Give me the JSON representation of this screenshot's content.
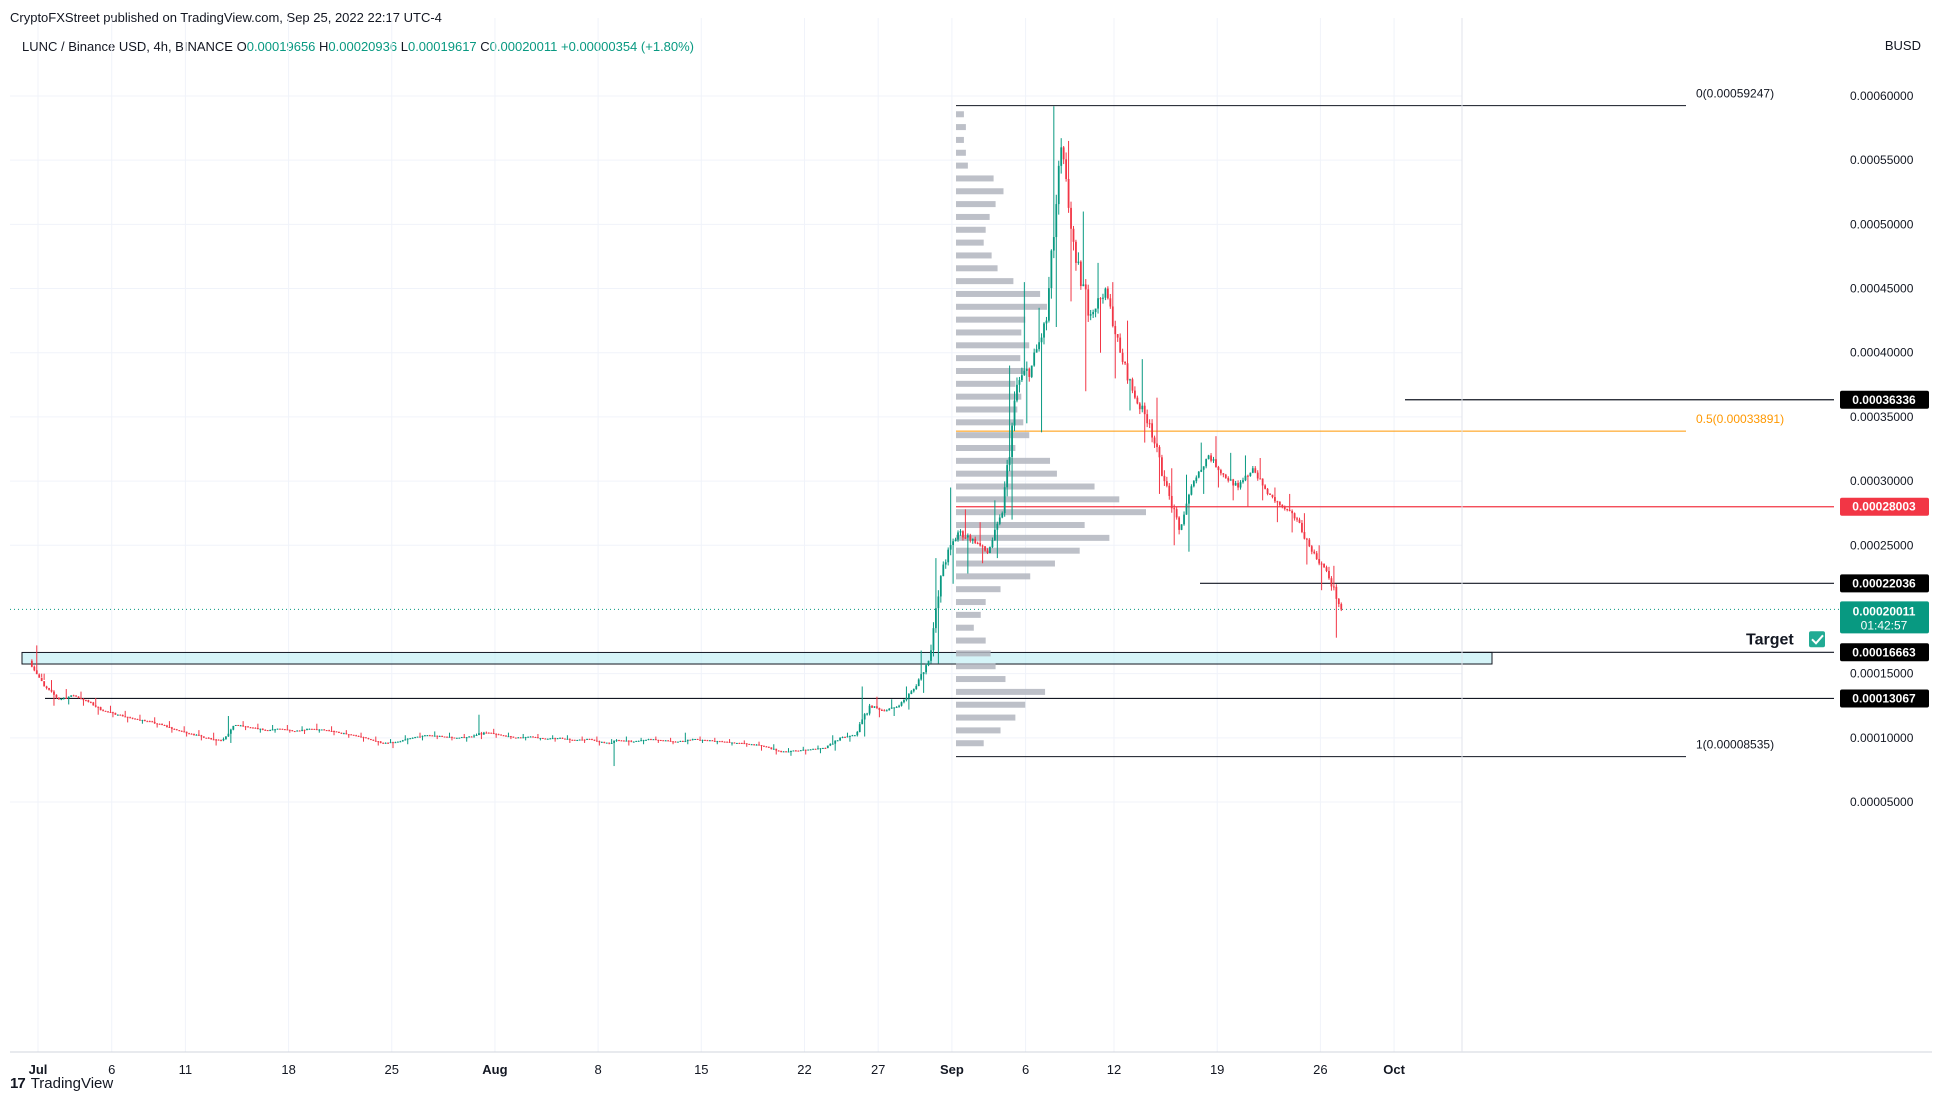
{
  "header": {
    "attribution": "CryptoFXStreet published on TradingView.com, Sep 25, 2022 22:17 UTC-4",
    "symbol": "LUNC / Binance USD, 4h, BINANCE",
    "ohlc": {
      "o_label": "O",
      "o_value": "0.00019656",
      "h_label": "H",
      "h_value": "0.00020936",
      "l_label": "L",
      "l_value": "0.00019617",
      "c_label": "C",
      "c_value": "0.00020011",
      "change": "+0.00000354 (+1.80%)"
    },
    "currency": "BUSD"
  },
  "footer": {
    "logo_text": "TradingView",
    "logo_mark": "17"
  },
  "chart_data": {
    "type": "candlestick",
    "title": "LUNC / Binance USD, 4h, BINANCE",
    "ylim": [
      3e-05,
      0.000625
    ],
    "y_ticks": [
      {
        "value": 5e-05,
        "label": "0.00005000"
      },
      {
        "value": 0.0001,
        "label": "0.00010000"
      },
      {
        "value": 0.00015,
        "label": "0.00015000"
      },
      {
        "value": 0.00025,
        "label": "0.00025000"
      },
      {
        "value": 0.0003,
        "label": "0.00030000"
      },
      {
        "value": 0.00035,
        "label": "0.00035000"
      },
      {
        "value": 0.0004,
        "label": "0.00040000"
      },
      {
        "value": 0.00045,
        "label": "0.00045000"
      },
      {
        "value": 0.0005,
        "label": "0.00050000"
      },
      {
        "value": 0.00055,
        "label": "0.00055000"
      },
      {
        "value": 0.0006,
        "label": "0.00060000"
      }
    ],
    "x_ticks": [
      {
        "day": 0,
        "label": "Jul"
      },
      {
        "day": 5,
        "label": "6"
      },
      {
        "day": 10,
        "label": "11"
      },
      {
        "day": 17,
        "label": "18"
      },
      {
        "day": 24,
        "label": "25"
      },
      {
        "day": 31,
        "label": "Aug"
      },
      {
        "day": 38,
        "label": "8"
      },
      {
        "day": 45,
        "label": "15"
      },
      {
        "day": 52,
        "label": "22"
      },
      {
        "day": 57,
        "label": "27"
      },
      {
        "day": 62,
        "label": "Sep"
      },
      {
        "day": 67,
        "label": "6"
      },
      {
        "day": 73,
        "label": "12"
      },
      {
        "day": 80,
        "label": "19"
      },
      {
        "day": 87,
        "label": "26"
      },
      {
        "day": 92,
        "label": "Oct"
      }
    ],
    "fib_levels": [
      {
        "ratio": "0",
        "value": 0.00059247,
        "label": "0(0.00059247)",
        "color": "#131722"
      },
      {
        "ratio": "0.5",
        "value": 0.00033891,
        "label": "0.5(0.00033891)",
        "color": "#ff9800"
      },
      {
        "ratio": "1",
        "value": 8.535e-05,
        "label": "1(0.00008535)",
        "color": "#131722"
      }
    ],
    "levels": [
      {
        "value": 0.00036336,
        "label": "0.00036336",
        "color": "#131722",
        "badge_bg": "#000000"
      },
      {
        "value": 0.00028003,
        "label": "0.00028003",
        "color": "#f23645",
        "badge_bg": "#f23645"
      },
      {
        "value": 0.00022036,
        "label": "0.00022036",
        "color": "#131722",
        "badge_bg": "#000000"
      },
      {
        "value": 0.00016663,
        "label": "0.00016663",
        "color": "#131722",
        "badge_bg": "#000000"
      },
      {
        "value": 0.00013067,
        "label": "0.00013067",
        "color": "#131722",
        "badge_bg": "#000000"
      }
    ],
    "current_price": {
      "value": 0.00020011,
      "label": "0.00020011",
      "countdown": "01:42:57",
      "color": "#089981"
    },
    "target": {
      "label": "Target",
      "value": 0.00016663,
      "check_icon": "check-box-icon"
    },
    "zone": {
      "top": 0.0001665,
      "bottom": 0.0001575,
      "color": "#b2ebf2"
    },
    "colors": {
      "up": "#089981",
      "down": "#f23645",
      "volume_profile": "#b2b5be"
    },
    "candles_daily": [
      [
        0.00016,
        0.000172,
        0.00015,
        0.00014
      ],
      [
        0.00014,
        0.000145,
        0.000125,
        0.00013
      ],
      [
        0.00013,
        0.000138,
        0.000126,
        0.000133
      ],
      [
        0.000133,
        0.000136,
        0.000125,
        0.000128
      ],
      [
        0.000128,
        0.000131,
        0.000118,
        0.000121
      ],
      [
        0.000121,
        0.000125,
        0.000116,
        0.000118
      ],
      [
        0.000118,
        0.000121,
        0.000112,
        0.000115
      ],
      [
        0.000115,
        0.000118,
        0.000111,
        0.000113
      ],
      [
        0.000113,
        0.000116,
        0.000108,
        0.00011
      ],
      [
        0.00011,
        0.000113,
        0.000104,
        0.000106
      ],
      [
        0.000106,
        0.000109,
        0.000101,
        0.000103
      ],
      [
        0.000103,
        0.000106,
        9.8e-05,
        0.0001
      ],
      [
        0.0001,
        0.000104,
        9.4e-05,
        9.8e-05
      ],
      [
        9.8e-05,
        0.000117,
        9.6e-05,
        0.00011
      ],
      [
        0.00011,
        0.000113,
        0.000106,
        0.000108
      ],
      [
        0.000108,
        0.000111,
        0.000104,
        0.000106
      ],
      [
        0.000106,
        0.00011,
        0.000104,
        0.000107
      ],
      [
        0.000107,
        0.00011,
        0.000104,
        0.000105
      ],
      [
        0.000105,
        0.000109,
        0.000103,
        0.000107
      ],
      [
        0.000107,
        0.000111,
        0.000104,
        0.000106
      ],
      [
        0.000106,
        0.000109,
        0.000102,
        0.000104
      ],
      [
        0.000104,
        0.000106,
        0.0001,
        0.000102
      ],
      [
        0.000102,
        0.000104,
        9.7e-05,
        9.9e-05
      ],
      [
        9.9e-05,
        0.000101,
        9.4e-05,
        9.6e-05
      ],
      [
        9.6e-05,
        9.9e-05,
        9.2e-05,
        9.7e-05
      ],
      [
        9.7e-05,
        0.000102,
        9.5e-05,
        0.0001
      ],
      [
        0.0001,
        0.000104,
        9.8e-05,
        0.000102
      ],
      [
        0.000102,
        0.000105,
        9.9e-05,
        0.000101
      ],
      [
        0.000101,
        0.000104,
        9.8e-05,
        0.0001
      ],
      [
        0.0001,
        0.000103,
        9.7e-05,
        0.000101
      ],
      [
        0.000101,
        0.000118,
        9.9e-05,
        0.000104
      ],
      [
        0.000104,
        0.000107,
        0.0001,
        0.000102
      ],
      [
        0.000102,
        0.000104,
        9.9e-05,
        0.0001
      ],
      [
        0.0001,
        0.000103,
        9.8e-05,
        0.000101
      ],
      [
        0.000101,
        0.000103,
        9.8e-05,
        9.9e-05
      ],
      [
        9.9e-05,
        0.000102,
        9.7e-05,
        0.0001
      ],
      [
        0.0001,
        0.000102,
        9.6e-05,
        9.8e-05
      ],
      [
        9.8e-05,
        0.000101,
        9.6e-05,
        9.9e-05
      ],
      [
        9.9e-05,
        0.000101,
        9.4e-05,
        9.6e-05
      ],
      [
        9.6e-05,
        9.9e-05,
        7.8e-05,
        9.8e-05
      ],
      [
        9.8e-05,
        0.000101,
        9.4e-05,
        9.7e-05
      ],
      [
        9.7e-05,
        0.0001,
        9.5e-05,
        9.9e-05
      ],
      [
        9.9e-05,
        0.000101,
        9.6e-05,
        9.8e-05
      ],
      [
        9.8e-05,
        0.0001,
        9.5e-05,
        9.7e-05
      ],
      [
        9.7e-05,
        0.000104,
        9.5e-05,
        9.9e-05
      ],
      [
        9.9e-05,
        0.000101,
        9.6e-05,
        9.8e-05
      ],
      [
        9.8e-05,
        0.0001,
        9.5e-05,
        9.7e-05
      ],
      [
        9.7e-05,
        9.9e-05,
        9.4e-05,
        9.6e-05
      ],
      [
        9.6e-05,
        9.8e-05,
        9.3e-05,
        9.5e-05
      ],
      [
        9.5e-05,
        9.7e-05,
        9e-05,
        9.3e-05
      ],
      [
        9.3e-05,
        9.5e-05,
        8.7e-05,
        8.9e-05
      ],
      [
        8.9e-05,
        9.2e-05,
        8.6e-05,
        9e-05
      ],
      [
        9e-05,
        9.3e-05,
        8.7e-05,
        9.1e-05
      ],
      [
        9.1e-05,
        9.4e-05,
        8.8e-05,
        9.2e-05
      ],
      [
        9.2e-05,
        0.000102,
        9e-05,
        0.0001
      ],
      [
        0.0001,
        0.000104,
        9.7e-05,
        0.000102
      ],
      [
        0.000102,
        0.00014,
        0.000101,
        0.000125
      ],
      [
        0.000125,
        0.000132,
        0.000116,
        0.000121
      ],
      [
        0.000121,
        0.00013,
        0.000117,
        0.000125
      ],
      [
        0.000125,
        0.00014,
        0.000122,
        0.000138
      ],
      [
        0.000138,
        0.000168,
        0.000135,
        0.00016
      ],
      [
        0.00016,
        0.00024,
        0.000158,
        0.000235
      ],
      [
        0.000235,
        0.000295,
        0.00022,
        0.00026
      ],
      [
        0.00026,
        0.000278,
        0.000228,
        0.000255
      ],
      [
        0.000255,
        0.000268,
        0.000236,
        0.000244
      ],
      [
        0.000244,
        0.000285,
        0.00024,
        0.000275
      ],
      [
        0.000275,
        0.00039,
        0.00027,
        0.000375
      ],
      [
        0.000375,
        0.000455,
        0.000345,
        0.00039
      ],
      [
        0.00039,
        0.000435,
        0.000338,
        0.000425
      ],
      [
        0.000425,
        0.000592,
        0.00042,
        0.00056
      ],
      [
        0.00056,
        0.000565,
        0.00044,
        0.00047
      ],
      [
        0.00047,
        0.00051,
        0.00037,
        0.00043
      ],
      [
        0.00043,
        0.00047,
        0.0004,
        0.00045
      ],
      [
        0.00045,
        0.000455,
        0.00038,
        0.0004
      ],
      [
        0.0004,
        0.000425,
        0.000355,
        0.000365
      ],
      [
        0.000365,
        0.000395,
        0.00033,
        0.000345
      ],
      [
        0.000345,
        0.000365,
        0.00029,
        0.0003
      ],
      [
        0.0003,
        0.00031,
        0.00025,
        0.000262
      ],
      [
        0.000262,
        0.000305,
        0.000245,
        0.0003
      ],
      [
        0.0003,
        0.00033,
        0.00029,
        0.00032
      ],
      [
        0.00032,
        0.000335,
        0.000295,
        0.000305
      ],
      [
        0.000305,
        0.000322,
        0.000285,
        0.000295
      ],
      [
        0.000295,
        0.00032,
        0.00028,
        0.00031
      ],
      [
        0.00031,
        0.000318,
        0.000285,
        0.00029
      ],
      [
        0.00029,
        0.000295,
        0.000268,
        0.00028
      ],
      [
        0.00028,
        0.00029,
        0.00026,
        0.00027
      ],
      [
        0.00027,
        0.000275,
        0.000235,
        0.000245
      ],
      [
        0.000245,
        0.00025,
        0.000215,
        0.00023
      ],
      [
        0.00023,
        0.000234,
        0.000178,
        0.0002
      ]
    ],
    "volume_profile": [
      [
        0.000585,
        8
      ],
      [
        0.000575,
        10
      ],
      [
        0.000565,
        8
      ],
      [
        0.000555,
        10
      ],
      [
        0.000545,
        12
      ],
      [
        0.000535,
        38
      ],
      [
        0.000525,
        48
      ],
      [
        0.000515,
        40
      ],
      [
        0.000505,
        34
      ],
      [
        0.000495,
        30
      ],
      [
        0.000485,
        28
      ],
      [
        0.000475,
        36
      ],
      [
        0.000465,
        42
      ],
      [
        0.000455,
        58
      ],
      [
        0.000445,
        85
      ],
      [
        0.000435,
        92
      ],
      [
        0.000425,
        70
      ],
      [
        0.000415,
        66
      ],
      [
        0.000405,
        74
      ],
      [
        0.000395,
        65
      ],
      [
        0.000385,
        70
      ],
      [
        0.000375,
        60
      ],
      [
        0.000365,
        66
      ],
      [
        0.000355,
        62
      ],
      [
        0.000345,
        68
      ],
      [
        0.000335,
        74
      ],
      [
        0.000325,
        60
      ],
      [
        0.000315,
        95
      ],
      [
        0.000305,
        102
      ],
      [
        0.000295,
        140
      ],
      [
        0.000285,
        165
      ],
      [
        0.000275,
        192
      ],
      [
        0.000265,
        130
      ],
      [
        0.000255,
        155
      ],
      [
        0.000245,
        125
      ],
      [
        0.000235,
        100
      ],
      [
        0.000225,
        75
      ],
      [
        0.000215,
        45
      ],
      [
        0.000205,
        30
      ],
      [
        0.000195,
        25
      ],
      [
        0.000185,
        18
      ],
      [
        0.000175,
        30
      ],
      [
        0.000165,
        35
      ],
      [
        0.000155,
        40
      ],
      [
        0.000145,
        50
      ],
      [
        0.000135,
        90
      ],
      [
        0.000125,
        70
      ],
      [
        0.000115,
        60
      ],
      [
        0.000105,
        45
      ],
      [
        9.5e-05,
        28
      ]
    ]
  }
}
